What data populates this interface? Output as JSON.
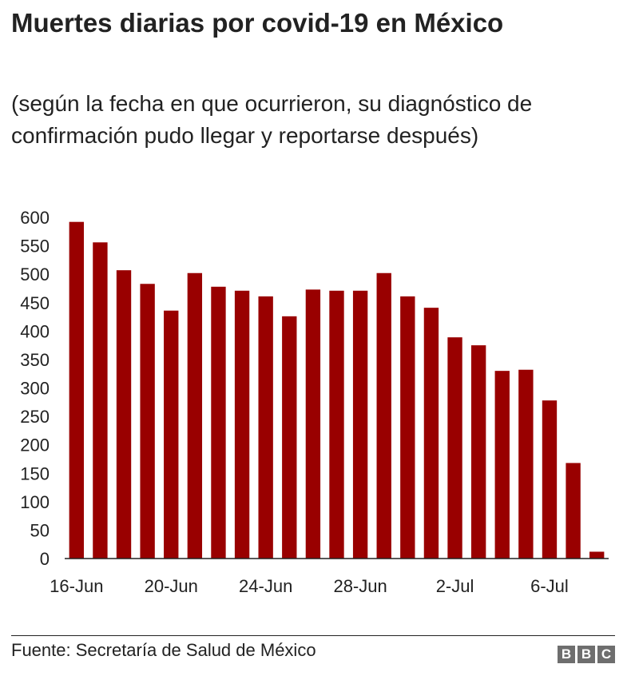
{
  "chart_data": {
    "type": "bar",
    "title": "Muertes diarias por covid-19 en México",
    "subtitle": "(según la fecha en que ocurrieron, su diagnóstico de confirmación pudo llegar y reportarse después)",
    "categories": [
      "16-Jun",
      "17-Jun",
      "18-Jun",
      "19-Jun",
      "20-Jun",
      "21-Jun",
      "22-Jun",
      "23-Jun",
      "24-Jun",
      "25-Jun",
      "26-Jun",
      "27-Jun",
      "28-Jun",
      "29-Jun",
      "30-Jun",
      "1-Jul",
      "2-Jul",
      "3-Jul",
      "4-Jul",
      "5-Jul",
      "6-Jul",
      "7-Jul",
      "8-Jul"
    ],
    "values": [
      592,
      556,
      507,
      483,
      436,
      502,
      478,
      471,
      461,
      426,
      473,
      471,
      471,
      502,
      461,
      441,
      389,
      375,
      330,
      332,
      278,
      168,
      12
    ],
    "x_tick_labels": [
      "16-Jun",
      "20-Jun",
      "24-Jun",
      "28-Jun",
      "2-Jul",
      "6-Jul"
    ],
    "y_ticks": [
      0,
      50,
      100,
      150,
      200,
      250,
      300,
      350,
      400,
      450,
      500,
      550,
      600
    ],
    "ylim": [
      0,
      600
    ],
    "bar_color": "#990000",
    "grid": false
  },
  "footer": {
    "source": "Fuente: Secretaría de Salud de México",
    "logo_letters": [
      "B",
      "B",
      "C"
    ]
  }
}
